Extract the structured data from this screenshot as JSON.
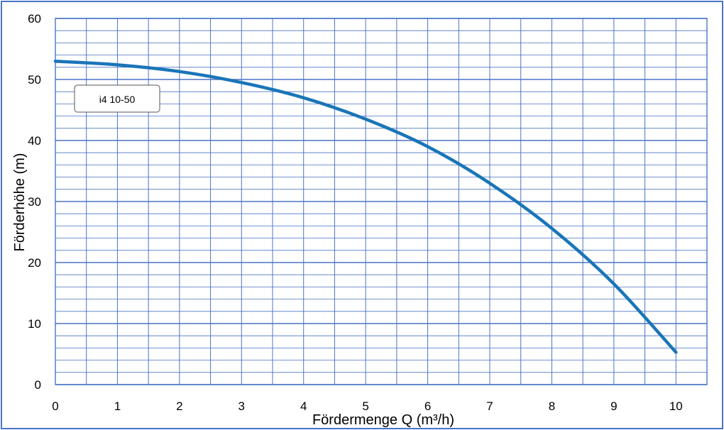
{
  "chart_data": {
    "type": "line",
    "xlabel": "Fördermenge Q (m³/h)",
    "ylabel": "Förderhöhe (m)",
    "xlim": [
      0,
      10.5
    ],
    "ylim": [
      0,
      60
    ],
    "x_ticks": [
      "0",
      "1",
      "2",
      "3",
      "4",
      "5",
      "6",
      "7",
      "8",
      "9",
      "10"
    ],
    "y_ticks": [
      "0",
      "10",
      "20",
      "30",
      "40",
      "50",
      "60"
    ],
    "grid": true,
    "legend_position": "top-left",
    "series": [
      {
        "name": "i4 10-50",
        "color": "#1a75b8",
        "x": [
          0,
          1,
          2,
          3,
          4,
          5,
          6,
          7,
          8,
          9,
          10
        ],
        "y": [
          53,
          52.4,
          51.3,
          49.5,
          47,
          43.5,
          39,
          33,
          25.6,
          16.5,
          5.3
        ]
      }
    ]
  }
}
